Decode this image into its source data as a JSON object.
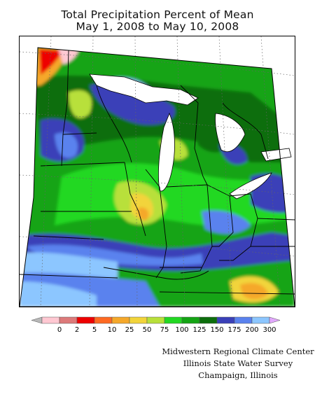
{
  "title": {
    "line1": "Total Precipitation Percent of Mean",
    "line2": "May 1, 2008 to May 10, 2008"
  },
  "legend": {
    "bins": [
      {
        "label": "0",
        "color": "#ffc8d2"
      },
      {
        "label": "2",
        "color": "#dd7a7a"
      },
      {
        "label": "5",
        "color": "#ee0000"
      },
      {
        "label": "10",
        "color": "#ff6a22"
      },
      {
        "label": "25",
        "color": "#f5a82a"
      },
      {
        "label": "50",
        "color": "#f2d43a"
      },
      {
        "label": "75",
        "color": "#b8e03a"
      },
      {
        "label": "100",
        "color": "#22d822"
      },
      {
        "label": "125",
        "color": "#14a414"
      },
      {
        "label": "150",
        "color": "#0c6e0c"
      },
      {
        "label": "175",
        "color": "#3a40b8"
      },
      {
        "label": "200",
        "color": "#5a82ee"
      },
      {
        "label": "300",
        "color": "#8cc6ff"
      }
    ],
    "under_color": "#b8b8b8",
    "over_color": "#e2a8ff"
  },
  "credits": {
    "line1": "Midwestern Regional Climate Center",
    "line2": "Illinois State Water Survey",
    "line3": "Champaign, Illinois"
  },
  "colors": {
    "lake": "#ffffff",
    "border": "#000000",
    "graticule": "#777777"
  }
}
